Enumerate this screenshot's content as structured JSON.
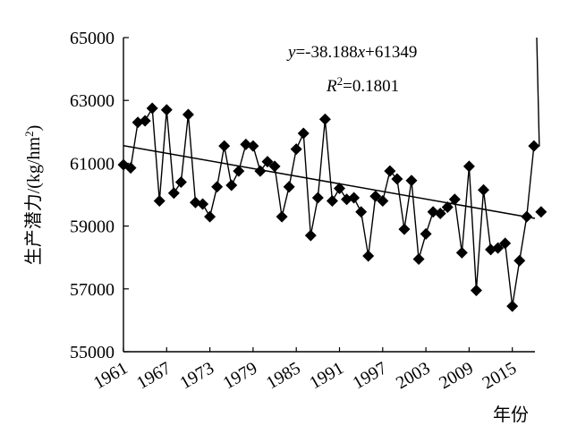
{
  "chart_data": {
    "type": "line",
    "title": "",
    "xlabel": "年份",
    "ylabel": "生产潜力/(kg/hm²)",
    "ylabel_parts": {
      "main": "生产潜力/(kg/hm",
      "sup": "2",
      "tail": ")"
    },
    "ylim": [
      55000,
      65000
    ],
    "xlim": [
      1961,
      2018
    ],
    "yticks": [
      "55000",
      "57000",
      "59000",
      "61000",
      "63000",
      "65000"
    ],
    "xticks": [
      "1961",
      "1967",
      "1973",
      "1979",
      "1985",
      "1991",
      "1997",
      "2003",
      "2009",
      "2015"
    ],
    "grid": false,
    "legend": "none",
    "series": [
      {
        "x": [
          1961,
          1962,
          1963,
          1964,
          1965,
          1966,
          1967,
          1968,
          1969,
          1970,
          1971,
          1972,
          1973,
          1974,
          1975,
          1976,
          1977,
          1978,
          1979,
          1980,
          1981,
          1982,
          1983,
          1984,
          1985,
          1986,
          1987,
          1988,
          1989,
          1990,
          1991,
          1992,
          1993,
          1994,
          1995,
          1996,
          1997,
          1998,
          1999,
          2000,
          2001,
          2002,
          2003,
          2004,
          2005,
          2006,
          2007,
          2008,
          2009,
          2010,
          2011,
          2012,
          2013,
          2014,
          2015,
          2016,
          2017,
          2018
        ],
        "values": [
          60950,
          60850,
          62300,
          62350,
          62750,
          59800,
          62700,
          60050,
          60400,
          62550,
          59750,
          59700,
          59300,
          60250,
          61550,
          60300,
          60750,
          61600,
          61550,
          60750,
          61050,
          60900,
          59300,
          60250,
          61450,
          61950,
          58700,
          59900,
          62400,
          59800,
          60200,
          59850,
          59900,
          59450,
          58050,
          59950,
          59800,
          60750,
          60500,
          58900,
          60450,
          57950,
          58750,
          59450,
          59400,
          59600,
          59850,
          58150,
          60900,
          56950,
          60150,
          58250,
          58300,
          58450,
          56450,
          57900,
          59300,
          61550
        ]
      }
    ],
    "trend": {
      "equation_y": "y",
      "equation_rhs_1": "=-38.188",
      "equation_x": "x",
      "equation_rhs_2": "+61349",
      "r2_label": "R",
      "r2_sup": "2",
      "r2_value": "=0.1801",
      "slope": -38.188,
      "intercept": 61349
    },
    "extra_point": 59450,
    "line_color": "#000000",
    "marker": "diamond"
  }
}
